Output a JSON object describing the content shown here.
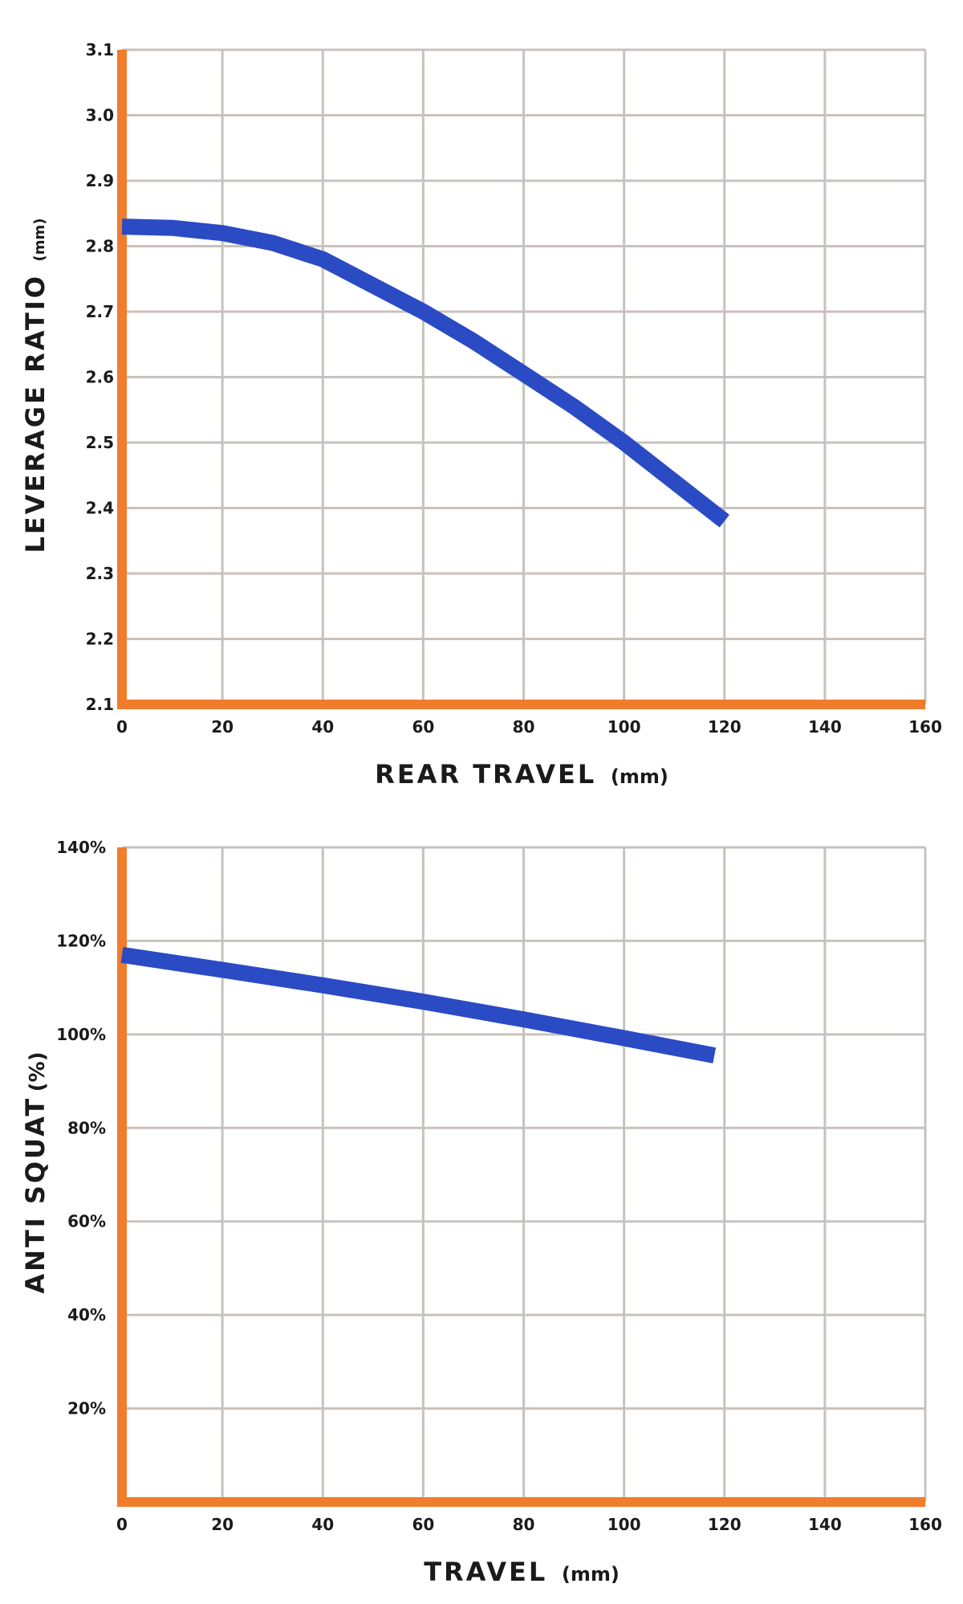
{
  "chart_data": [
    {
      "type": "line",
      "title": "",
      "xlabel": "REAR TRAVEL",
      "xlabel_unit": "(mm)",
      "ylabel": "LEVERAGE RATIO",
      "ylabel_unit": "(mm)",
      "xlim": [
        0,
        160
      ],
      "ylim": [
        2.1,
        3.1
      ],
      "x_ticks": [
        "0",
        "20",
        "40",
        "60",
        "80",
        "100",
        "120",
        "140",
        "160"
      ],
      "y_ticks": [
        "2.1",
        "2.2",
        "2.3",
        "2.4",
        "2.5",
        "2.6",
        "2.7",
        "2.8",
        "2.9",
        "3.0",
        "3.1"
      ],
      "grid": true,
      "line_color": "#2a4bc4",
      "axis_color": "#f07c2c",
      "grid_color": "#c8c2bc",
      "series": [
        {
          "name": "",
          "x": [
            0,
            10,
            20,
            30,
            40,
            50,
            60,
            70,
            80,
            90,
            100,
            110,
            120
          ],
          "y": [
            2.83,
            2.828,
            2.82,
            2.805,
            2.78,
            2.74,
            2.7,
            2.655,
            2.605,
            2.555,
            2.5,
            2.44,
            2.38
          ]
        }
      ]
    },
    {
      "type": "line",
      "title": "",
      "xlabel": "TRAVEL",
      "xlabel_unit": "(mm)",
      "ylabel": "ANTI SQUAT",
      "ylabel_unit": "(%)",
      "xlim": [
        0,
        160
      ],
      "ylim": [
        0,
        140
      ],
      "x_ticks": [
        "0",
        "20",
        "40",
        "60",
        "80",
        "100",
        "120",
        "140",
        "160"
      ],
      "y_ticks": [
        "20%",
        "40%",
        "60%",
        "80%",
        "100%",
        "120%",
        "140%"
      ],
      "y_tick_values": [
        20,
        40,
        60,
        80,
        100,
        120,
        140
      ],
      "grid": true,
      "line_color": "#2a4bc4",
      "axis_color": "#f07c2c",
      "grid_color": "#c8c2bc",
      "series": [
        {
          "name": "",
          "x": [
            0,
            20,
            40,
            60,
            80,
            100,
            118
          ],
          "y": [
            117,
            113.8,
            110.5,
            107,
            103.2,
            99.2,
            95.5
          ]
        }
      ]
    }
  ]
}
